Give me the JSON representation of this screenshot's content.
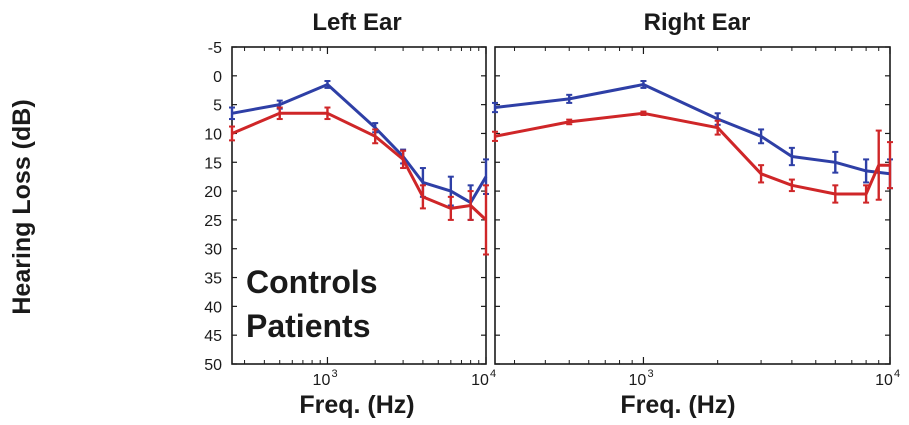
{
  "figure": {
    "colors": {
      "controls": "#2e3fa6",
      "patients": "#cf2628",
      "axis": "#1a1a1a"
    }
  },
  "chart_data": [
    {
      "type": "line",
      "title": "Left Ear",
      "xlabel": "Freq. (Hz)",
      "ylabel": "Hearing Loss (dB)",
      "xscale": "log",
      "xlim": [
        250,
        10000
      ],
      "ylim": [
        50,
        -5
      ],
      "yaxis_inverted": true,
      "yticks": [
        "-5",
        "0",
        "5",
        "10",
        "15",
        "20",
        "25",
        "30",
        "35",
        "40",
        "45",
        "50"
      ],
      "xticks": [
        {
          "base": "10",
          "exp": "3",
          "value": 1000
        },
        {
          "base": "10",
          "exp": "4",
          "value": 10000
        }
      ],
      "grid": false,
      "legend": {
        "placement": "bottom-left",
        "entries": [
          "Controls",
          "Patients"
        ]
      },
      "series": [
        {
          "name": "Controls",
          "color": "#2e3fa6",
          "x": [
            250,
            500,
            1000,
            2000,
            3000,
            4000,
            6000,
            8000,
            10000
          ],
          "y": [
            6.5,
            5,
            1.5,
            9,
            14,
            18.5,
            20,
            22,
            17.5
          ],
          "err": [
            1,
            0.7,
            0.6,
            0.8,
            1.2,
            2.5,
            2.5,
            3,
            3
          ]
        },
        {
          "name": "Patients",
          "color": "#cf2628",
          "x": [
            250,
            500,
            1000,
            2000,
            3000,
            4000,
            6000,
            8000,
            10000
          ],
          "y": [
            10,
            6.5,
            6.5,
            10.5,
            14.5,
            21,
            23,
            22.5,
            25
          ],
          "err": [
            1.2,
            1,
            1,
            1.2,
            1.5,
            2,
            2,
            2.5,
            6
          ]
        }
      ]
    },
    {
      "type": "line",
      "title": "Right Ear",
      "xlabel": "Freq. (Hz)",
      "ylabel": "",
      "xscale": "log",
      "xlim": [
        250,
        10000
      ],
      "ylim": [
        50,
        -5
      ],
      "yaxis_inverted": true,
      "xticks": [
        {
          "base": "10",
          "exp": "3",
          "value": 1000
        },
        {
          "base": "10",
          "exp": "4",
          "value": 10000
        }
      ],
      "grid": false,
      "series": [
        {
          "name": "Controls",
          "color": "#2e3fa6",
          "x": [
            250,
            500,
            1000,
            2000,
            3000,
            4000,
            6000,
            8000,
            10000
          ],
          "y": [
            5.5,
            4,
            1.5,
            7.5,
            10.5,
            14,
            15,
            16.5,
            17
          ],
          "err": [
            0.8,
            0.7,
            0.6,
            1,
            1.2,
            1.5,
            1.8,
            2,
            2.5
          ]
        },
        {
          "name": "Patients",
          "color": "#cf2628",
          "x": [
            250,
            500,
            1000,
            2000,
            3000,
            4000,
            6000,
            8000,
            9000,
            10000
          ],
          "y": [
            10.5,
            8,
            6.5,
            9,
            17,
            19,
            20.5,
            20.5,
            15.5,
            15.5
          ],
          "err": [
            0.8,
            0.4,
            0.3,
            1.2,
            1.5,
            1,
            1.5,
            1.5,
            6,
            4
          ]
        }
      ]
    }
  ]
}
